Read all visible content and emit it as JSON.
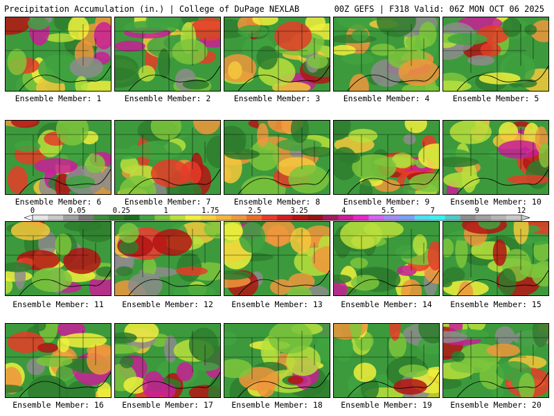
{
  "header": {
    "title_left": "Precipitation Accumulation (in.) | College of DuPage NEXLAB",
    "title_right": "00Z GEFS | F318 Valid: 06Z MON OCT 06 2025"
  },
  "members": [
    {
      "label": "Ensemble Member: 1"
    },
    {
      "label": "Ensemble Member: 2"
    },
    {
      "label": "Ensemble Member: 3"
    },
    {
      "label": "Ensemble Member: 4"
    },
    {
      "label": "Ensemble Member: 5"
    },
    {
      "label": "Ensemble Member: 6"
    },
    {
      "label": "Ensemble Member: 7"
    },
    {
      "label": "Ensemble Member: 8"
    },
    {
      "label": "Ensemble Member: 9"
    },
    {
      "label": "Ensemble Member: 10"
    },
    {
      "label": "Ensemble Member: 11"
    },
    {
      "label": "Ensemble Member: 12"
    },
    {
      "label": "Ensemble Member: 13"
    },
    {
      "label": "Ensemble Member: 14"
    },
    {
      "label": "Ensemble Member: 15"
    },
    {
      "label": "Ensemble Member: 16"
    },
    {
      "label": "Ensemble Member: 17"
    },
    {
      "label": "Ensemble Member: 18"
    },
    {
      "label": "Ensemble Member: 19"
    },
    {
      "label": "Ensemble Member: 20"
    }
  ],
  "colorbar": {
    "labels": [
      "0",
      "0.05",
      "0.25",
      "1",
      "1.75",
      "2.5",
      "3.25",
      "4",
      "5.5",
      "7",
      "9",
      "12"
    ],
    "colors": [
      "#e6e6e6",
      "#c8c8c8",
      "#a0a0a0",
      "#787878",
      "#3c8c3c",
      "#2e7d2e",
      "#1e6e1e",
      "#3fa33f",
      "#7cc63c",
      "#b8e03c",
      "#f0f03c",
      "#f5d23c",
      "#f5b43c",
      "#f0963c",
      "#eb6e28",
      "#e63c28",
      "#d21e1e",
      "#b41414",
      "#961414",
      "#a01e5a",
      "#c81e96",
      "#e628c8",
      "#d264f0",
      "#a08cf5",
      "#78a0f5",
      "#50dcf5",
      "#3cf0f0",
      "#50c8c8",
      "#8c8c8c",
      "#a0a0a0",
      "#b4b4b4",
      "#c8c8c8"
    ]
  }
}
